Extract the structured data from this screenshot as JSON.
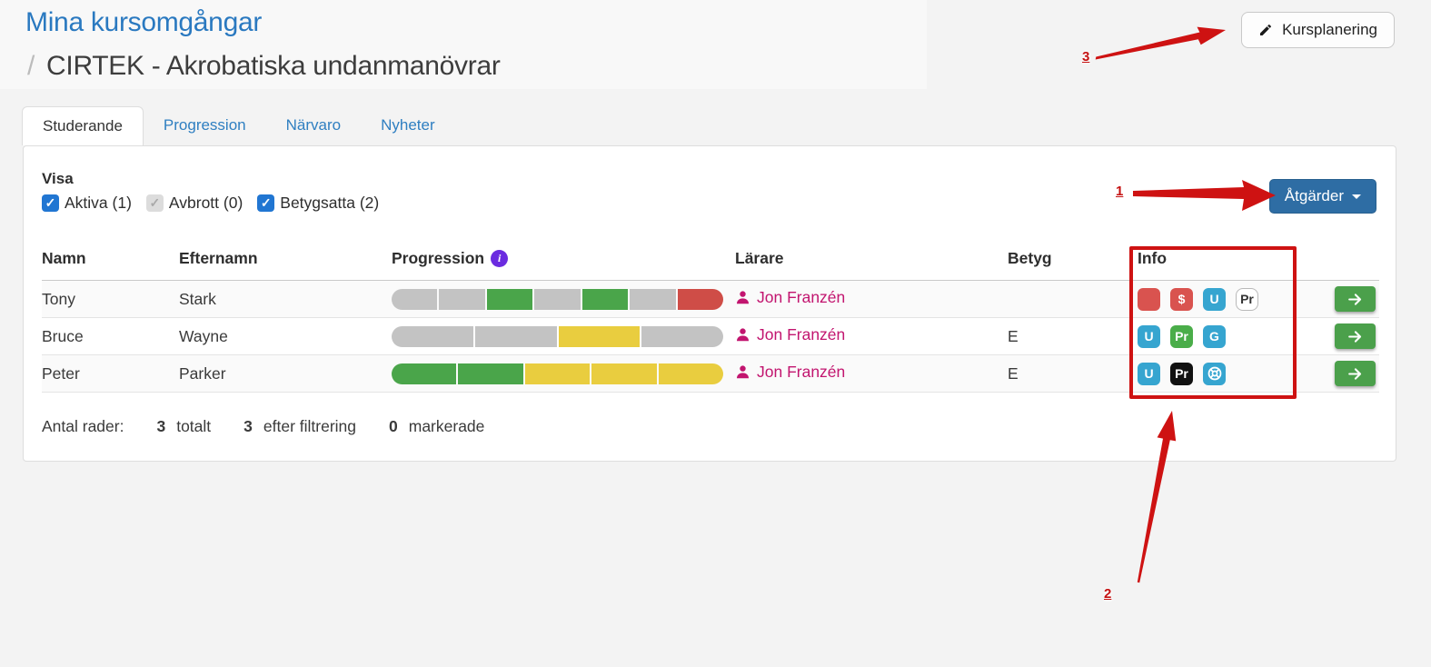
{
  "page": {
    "title": "Mina kursomgångar",
    "breadcrumb_separator": "/",
    "subtitle": "CIRTEK - Akrobatiska undanmanövrar"
  },
  "header": {
    "kursplanering_label": "Kursplanering"
  },
  "tabs": [
    {
      "label": "Studerande",
      "active": true
    },
    {
      "label": "Progression",
      "active": false
    },
    {
      "label": "Närvaro",
      "active": false
    },
    {
      "label": "Nyheter",
      "active": false
    }
  ],
  "filters": {
    "title": "Visa",
    "items": [
      {
        "label": "Aktiva (1)",
        "checked": true,
        "disabled": false
      },
      {
        "label": "Avbrott (0)",
        "checked": true,
        "disabled": true
      },
      {
        "label": "Betygsatta (2)",
        "checked": true,
        "disabled": false
      }
    ]
  },
  "actions_button": {
    "label": "Åtgärder"
  },
  "table": {
    "headers": [
      "Namn",
      "Efternamn",
      "Progression",
      "Lärare",
      "Betyg",
      "Info"
    ],
    "rows": [
      {
        "first": "Tony",
        "last": "Stark",
        "teacher": "Jon Franzén",
        "grade": "",
        "progress": [
          "gray",
          "gray",
          "green",
          "gray",
          "green",
          "gray",
          "red"
        ],
        "badges": [
          {
            "text": "",
            "style": "red"
          },
          {
            "text": "$",
            "style": "red"
          },
          {
            "text": "U",
            "style": "blue"
          },
          {
            "text": "Pr",
            "style": "outline"
          }
        ]
      },
      {
        "first": "Bruce",
        "last": "Wayne",
        "teacher": "Jon Franzén",
        "grade": "E",
        "progress": [
          "gray",
          "gray",
          "yellow",
          "gray"
        ],
        "badges": [
          {
            "text": "U",
            "style": "blue"
          },
          {
            "text": "Pr",
            "style": "green"
          },
          {
            "text": "G",
            "style": "blue"
          }
        ]
      },
      {
        "first": "Peter",
        "last": "Parker",
        "teacher": "Jon Franzén",
        "grade": "E",
        "progress": [
          "green",
          "green",
          "yellow",
          "yellow",
          "yellow"
        ],
        "badges": [
          {
            "text": "U",
            "style": "blue"
          },
          {
            "text": "Pr",
            "style": "black"
          },
          {
            "icon": "life-ring",
            "style": "blue"
          }
        ]
      }
    ]
  },
  "summary": {
    "label": "Antal rader:",
    "total_value": "3",
    "total_label": "totalt",
    "filtered_value": "3",
    "filtered_label": "efter filtrering",
    "selected_value": "0",
    "selected_label": "markerade"
  },
  "annotations": {
    "one": "1",
    "two": "2",
    "three": "3"
  },
  "colors": {
    "annotation_red": "#ce1212",
    "title_blue": "#2a79c0",
    "tab_link_blue": "#2f7fc1",
    "actions_button_blue": "#2e6da4",
    "checkbox_blue": "#2176d2",
    "teacher_magenta": "#c2156f",
    "info_icon_purple": "#6b2be0",
    "progress_gray": "#c3c3c3",
    "progress_green": "#4aa54a",
    "progress_yellow": "#e9cd3f",
    "progress_red": "#cf4d47",
    "badge_red": "#d9534f",
    "badge_blue": "#36a5d0",
    "badge_green": "#4aad49",
    "badge_black": "#111111",
    "row_action_green": "#4ba04b"
  }
}
